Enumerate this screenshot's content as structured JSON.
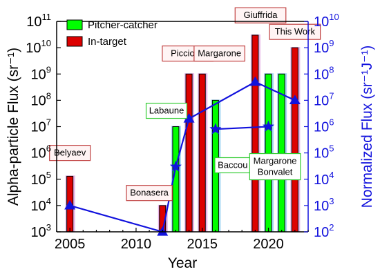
{
  "chart_data": {
    "type": "bar",
    "xlabel": "Year",
    "ylabel": "Alpha-particle Flux (sr⁻¹)",
    "y2label": "Normalized Flux (sr⁻¹J⁻¹)",
    "xlim": [
      2004,
      2023
    ],
    "x_ticks": [
      2005,
      2010,
      2015,
      2020
    ],
    "yscale": "log",
    "ylim_exp": [
      3,
      11
    ],
    "y2lim_exp": [
      2,
      10
    ],
    "legend_position": "top-left",
    "colors": {
      "pitcher_catcher": "#00ff00",
      "in_target": "#dd0000",
      "normalized": "#1111dd",
      "pc_shadow": "#a6d8f4",
      "it_shadow": "#e7b4e7",
      "pc_box": "#33cc33",
      "it_box": "#c04040"
    },
    "series": [
      {
        "name": "Pitcher-catcher",
        "points": [
          {
            "x": 2013,
            "y": 10000000
          },
          {
            "x": 2016,
            "y": 100000000
          },
          {
            "x": 2020,
            "y": 1000000000
          },
          {
            "x": 2021,
            "y": 1000000000
          }
        ]
      },
      {
        "name": "In-target",
        "points": [
          {
            "x": 2005,
            "y": 130000
          },
          {
            "x": 2012,
            "y": 10000
          },
          {
            "x": 2014,
            "y": 1000000000
          },
          {
            "x": 2015,
            "y": 1000000000
          },
          {
            "x": 2019,
            "y": 30000000000
          },
          {
            "x": 2022,
            "y": 10000000000
          }
        ]
      }
    ],
    "normalized_lines": [
      {
        "points": [
          {
            "x": 2005,
            "y": 1000
          },
          {
            "x": 2012,
            "y": 100
          },
          {
            "x": 2013,
            "y": 30000
          },
          {
            "x": 2014,
            "y": 2000000
          },
          {
            "x": 2019,
            "y": 50000000
          },
          {
            "x": 2022,
            "y": 10000000
          }
        ]
      },
      {
        "points": [
          {
            "x": 2016,
            "y": 800000
          },
          {
            "x": 2020,
            "y": 1000000
          }
        ]
      }
    ],
    "normalized_markers": [
      {
        "x": 2005,
        "y": 1000,
        "shape": "triangle"
      },
      {
        "x": 2012,
        "y": 100,
        "shape": "triangle"
      },
      {
        "x": 2013,
        "y": 30000,
        "shape": "star"
      },
      {
        "x": 2014,
        "y": 2000000,
        "shape": "triangle"
      },
      {
        "x": 2016,
        "y": 800000,
        "shape": "star"
      },
      {
        "x": 2019,
        "y": 50000000,
        "shape": "triangle"
      },
      {
        "x": 2020,
        "y": 1000000,
        "shape": "star"
      },
      {
        "x": 2022,
        "y": 10000000,
        "shape": "triangle"
      }
    ],
    "annotations": [
      {
        "text": "Belyaev",
        "type": "in-target",
        "x": 2005,
        "y": 1000000
      },
      {
        "text": "Bonasera",
        "type": "in-target",
        "x": 2011,
        "y": 30000
      },
      {
        "text": "Picciotto",
        "type": "in-target",
        "x": 2013.9,
        "y": 6000000000
      },
      {
        "text": "Margarone",
        "type": "in-target",
        "x": 2016.3,
        "y": 6000000000
      },
      {
        "text": "Giuffrida",
        "type": "in-target",
        "x": 2019.4,
        "y": 170000000000
      },
      {
        "text": "This Work",
        "type": "in-target",
        "x": 2022,
        "y": 40000000000
      },
      {
        "text": "Labaune",
        "type": "pitcher-catcher",
        "x": 2012.3,
        "y": 40000000
      },
      {
        "text": "Baccou",
        "type": "pitcher-catcher",
        "x": 2017.3,
        "y": 340000
      },
      {
        "text": "Margarone\nBonvalet",
        "type": "pitcher-catcher",
        "x": 2020.5,
        "y": 300000
      }
    ]
  }
}
